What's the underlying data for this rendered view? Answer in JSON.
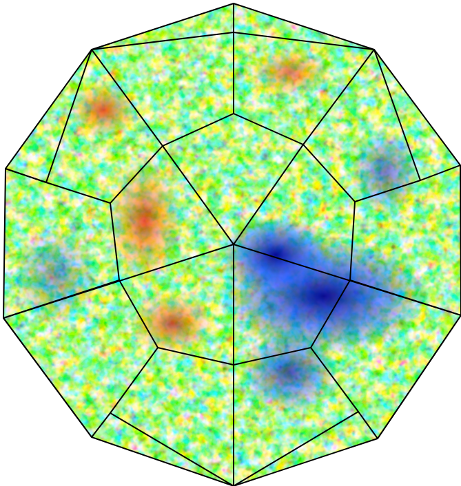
{
  "image": {
    "subject": "deltoidal-hexecontahedron",
    "palette": {
      "deep_blue": "#00008f",
      "blue": "#1f4bff",
      "light_blue": "#3fb3ff",
      "cyan": "#5ff2ff",
      "yellow": "#ffe84a",
      "orange": "#ff8a1a",
      "red": "#e21a10",
      "dark_red": "#8f0000",
      "edge": "#000000"
    }
  }
}
